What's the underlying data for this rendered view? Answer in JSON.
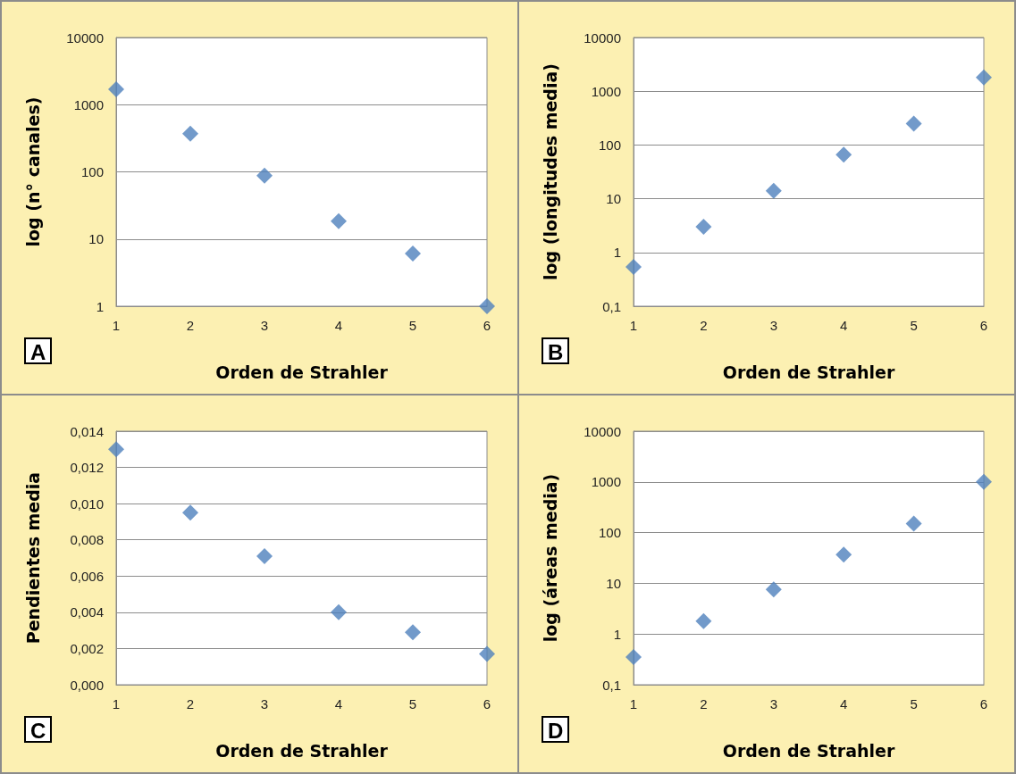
{
  "chart_data": [
    {
      "type": "scatter",
      "xlabel": "Orden de Strahler",
      "ylabel": "log (n° canales)",
      "annotations": [
        "A"
      ],
      "x": [
        1,
        2,
        3,
        4,
        5,
        6
      ],
      "values": [
        1700,
        370,
        88,
        18.5,
        6.1,
        1
      ],
      "color": "#4f81bd",
      "marker": "diamond",
      "log": true,
      "grid": "y",
      "xlim": [
        1,
        6
      ],
      "xticks": [
        1,
        2,
        3,
        4,
        5,
        6
      ],
      "ylim": [
        1,
        10000
      ],
      "yticks": [
        1,
        10,
        100,
        1000,
        10000
      ]
    },
    {
      "type": "scatter",
      "xlabel": "Orden de Strahler",
      "ylabel": "log (longitudes media)",
      "annotations": [
        "B"
      ],
      "x": [
        1,
        2,
        3,
        4,
        5,
        6
      ],
      "values": [
        0.54,
        3,
        14,
        66,
        250,
        1800
      ],
      "color": "#4f81bd",
      "marker": "diamond",
      "log": true,
      "grid": "y",
      "xlim": [
        1,
        6
      ],
      "xticks": [
        1,
        2,
        3,
        4,
        5,
        6
      ],
      "ylim": [
        0.1,
        10000
      ],
      "yticks": [
        {
          "value": 0.1,
          "label": "0,1"
        },
        1,
        10,
        100,
        1000,
        10000
      ]
    },
    {
      "type": "scatter",
      "xlabel": "Orden de Strahler",
      "ylabel": "Pendientes media",
      "annotations": [
        "C"
      ],
      "x": [
        1,
        2,
        3,
        4,
        5,
        6
      ],
      "values": [
        0.013,
        0.0095,
        0.0071,
        0.004,
        0.0029,
        0.0017
      ],
      "color": "#4f81bd",
      "marker": "diamond",
      "grid": "y",
      "xlim": [
        1,
        6
      ],
      "xticks": [
        1,
        2,
        3,
        4,
        5,
        6
      ],
      "ylim": [
        0,
        0.014
      ],
      "yticks": [
        {
          "value": 0,
          "label": "0,000"
        },
        {
          "value": 0.002,
          "label": "0,002"
        },
        {
          "value": 0.004,
          "label": "0,004"
        },
        {
          "value": 0.006,
          "label": "0,006"
        },
        {
          "value": 0.008,
          "label": "0,008"
        },
        {
          "value": 0.01,
          "label": "0,010"
        },
        {
          "value": 0.012,
          "label": "0,012"
        },
        {
          "value": 0.014,
          "label": "0,014"
        }
      ]
    },
    {
      "type": "scatter",
      "xlabel": "Orden de Strahler",
      "ylabel": "log (áreas media)",
      "annotations": [
        "D"
      ],
      "x": [
        1,
        2,
        3,
        4,
        5,
        6
      ],
      "values": [
        0.35,
        1.8,
        7.6,
        37,
        150,
        1000
      ],
      "color": "#4f81bd",
      "marker": "diamond",
      "log": true,
      "grid": "y",
      "xlim": [
        1,
        6
      ],
      "xticks": [
        1,
        2,
        3,
        4,
        5,
        6
      ],
      "ylim": [
        0.1,
        10000
      ],
      "yticks": [
        {
          "value": 0.1,
          "label": "0,1"
        },
        1,
        10,
        100,
        1000,
        10000
      ]
    }
  ]
}
